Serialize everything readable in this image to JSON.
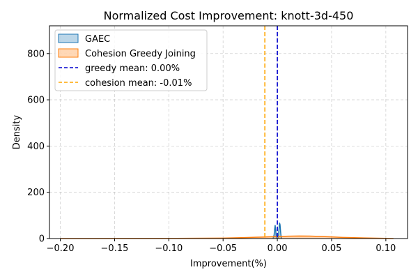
{
  "chart_data": {
    "type": "area",
    "title": "Normalized Cost Improvement: knott-3d-450",
    "xlabel": "Improvement(%)",
    "ylabel": "Density",
    "xlim": [
      -0.21,
      0.12
    ],
    "ylim": [
      0,
      920
    ],
    "x_ticks": [
      -0.2,
      -0.15,
      -0.1,
      -0.05,
      0.0,
      0.05,
      0.1
    ],
    "x_tick_labels": [
      "−0.20",
      "−0.15",
      "−0.10",
      "−0.05",
      "0.00",
      "0.05",
      "0.10"
    ],
    "y_ticks": [
      0,
      200,
      400,
      600,
      800
    ],
    "y_tick_labels": [
      "0",
      "200",
      "400",
      "600",
      "800"
    ],
    "grid": true,
    "legend_position": "top-left",
    "series": [
      {
        "name": "GAEC",
        "kind": "density",
        "color": "#1f77b4",
        "fill": "#1f77b4",
        "x": [
          -0.004,
          -0.003,
          -0.0025,
          -0.002,
          -0.0015,
          -0.001,
          -0.0005,
          0.0,
          0.0005,
          0.001,
          0.0015,
          0.002,
          0.0025,
          0.003,
          0.0035,
          0.004
        ],
        "y": [
          0,
          15,
          40,
          58,
          35,
          10,
          2,
          0,
          2,
          10,
          40,
          68,
          60,
          30,
          8,
          0
        ]
      },
      {
        "name": "Cohesion Greedy Joining",
        "kind": "density",
        "color": "#ff7f0e",
        "fill": "#ff7f0e",
        "x": [
          -0.2,
          -0.15,
          -0.1,
          -0.08,
          -0.05,
          -0.03,
          -0.02,
          -0.01,
          0.0,
          0.01,
          0.02,
          0.03,
          0.04,
          0.05,
          0.06,
          0.08,
          0.1,
          0.107
        ],
        "y": [
          0,
          0.2,
          0.6,
          1,
          2,
          4,
          5.5,
          7,
          8.5,
          10,
          11,
          10.5,
          9,
          7,
          5,
          2.5,
          0.6,
          0
        ]
      },
      {
        "name": "greedy mean: 0.00%",
        "kind": "vline",
        "color": "#0000cd",
        "x": 0.0
      },
      {
        "name": "cohesion mean: -0.01%",
        "kind": "vline",
        "color": "#ffa500",
        "x": -0.0115
      }
    ]
  }
}
